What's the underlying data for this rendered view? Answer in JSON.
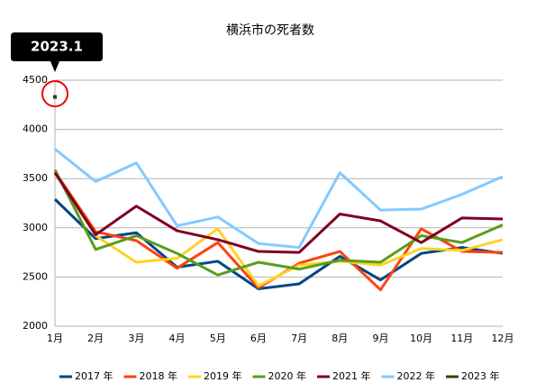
{
  "chart_data": {
    "type": "line",
    "title": "横浜市の死者数",
    "annotation": "2023.1",
    "categories": [
      "1月",
      "2月",
      "3月",
      "4月",
      "5月",
      "6月",
      "7月",
      "8月",
      "9月",
      "10月",
      "11月",
      "12月"
    ],
    "series": [
      {
        "name": "2017 年",
        "color": "#004586",
        "values": [
          3290,
          2890,
          2950,
          2600,
          2660,
          2380,
          2430,
          2710,
          2470,
          2740,
          2800,
          2740
        ]
      },
      {
        "name": "2018 年",
        "color": "#ff420e",
        "values": [
          3570,
          2960,
          2870,
          2590,
          2850,
          2390,
          2640,
          2760,
          2370,
          2990,
          2760,
          2750
        ]
      },
      {
        "name": "2019 年",
        "color": "#ffd320",
        "values": [
          3560,
          2920,
          2650,
          2690,
          2990,
          2410,
          2620,
          2660,
          2620,
          2790,
          2770,
          2880
        ]
      },
      {
        "name": "2020 年",
        "color": "#579d1c",
        "values": [
          3590,
          2780,
          2920,
          2740,
          2520,
          2650,
          2580,
          2670,
          2650,
          2920,
          2850,
          3030
        ]
      },
      {
        "name": "2021 年",
        "color": "#7e0021",
        "values": [
          3560,
          2930,
          3220,
          2970,
          2880,
          2760,
          2750,
          3140,
          3070,
          2850,
          3100,
          3090
        ]
      },
      {
        "name": "2022 年",
        "color": "#83caff",
        "values": [
          3800,
          3470,
          3660,
          3020,
          3110,
          2840,
          2800,
          3560,
          3180,
          3190,
          3340,
          3520
        ]
      },
      {
        "name": "2023 年",
        "color": "#314004",
        "values": [
          4330,
          null,
          null,
          null,
          null,
          null,
          null,
          null,
          null,
          null,
          null,
          null
        ]
      }
    ],
    "ylim": [
      2000,
      4500
    ],
    "yticks": [
      2000,
      2500,
      3000,
      3500,
      4000,
      4500
    ],
    "grid": true,
    "legend": "bottom"
  }
}
